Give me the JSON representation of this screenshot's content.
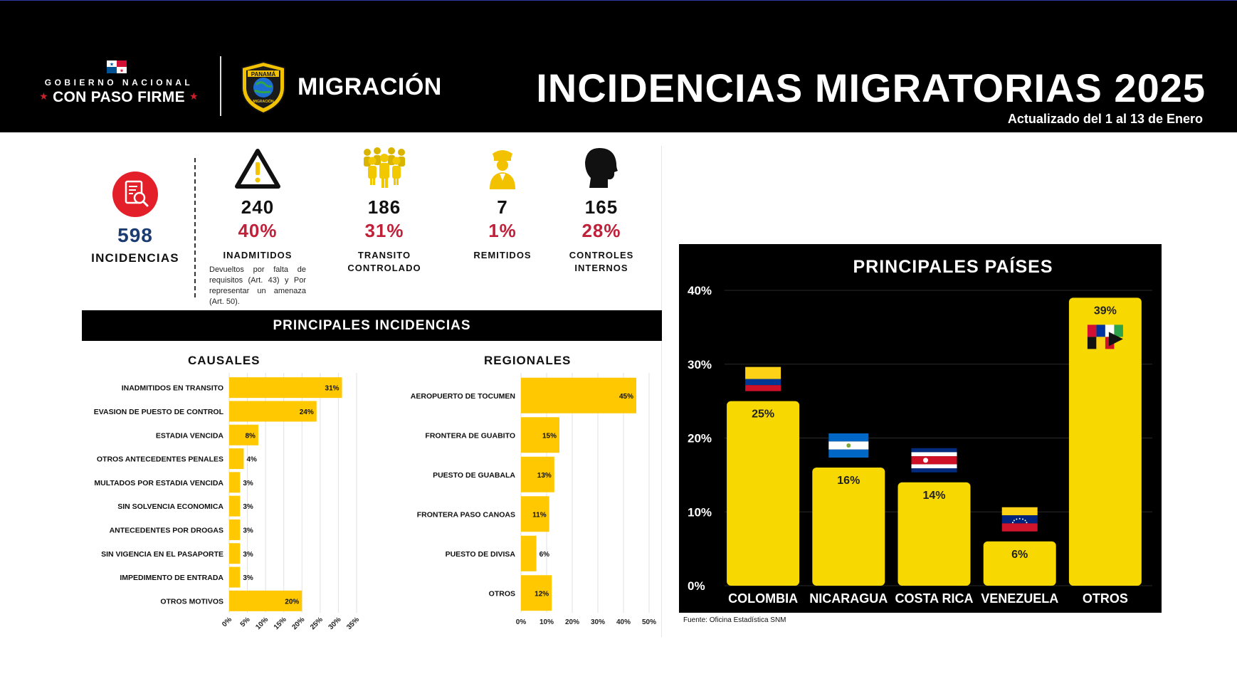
{
  "header": {
    "gob_line1": "GOBIERNO NACIONAL",
    "gob_line2": "CON PASO FIRME",
    "badge_text": "PANAMÁ",
    "badge_sub": "MIGRACIÓN",
    "agency": "MIGRACIÓN",
    "title": "INCIDENCIAS MIGRATORIAS 2025",
    "subtitle": "Actualizado del 1 al 13 de Enero"
  },
  "summary": {
    "total_value": "598",
    "total_label": "INCIDENCIAS",
    "icon": "search-document-icon"
  },
  "stats": [
    {
      "value": "240",
      "pct": "40%",
      "label": "INADMITIDOS",
      "icon": "warning-triangle-icon",
      "note": "Devueltos por falta de requisitos (Art. 43) y Por representar un amenaza (Art. 50)."
    },
    {
      "value": "186",
      "pct": "31%",
      "label": "TRANSITO CONTROLADO",
      "icon": "crowd-icon"
    },
    {
      "value": "7",
      "pct": "1%",
      "label": "REMITIDOS",
      "icon": "officer-icon"
    },
    {
      "value": "165",
      "pct": "28%",
      "label": "CONTROLES INTERNOS",
      "icon": "head-silhouette-icon"
    }
  ],
  "section_title": "PRINCIPALES INCIDENCIAS",
  "colors": {
    "bar": "#FFC800",
    "bar_country": "#F7D800",
    "accent_red": "#C0213A",
    "navy": "#1B3C73"
  },
  "chart_data": [
    {
      "type": "bar",
      "orientation": "horizontal",
      "title": "CAUSALES",
      "categories": [
        "INADMITIDOS EN TRANSITO",
        "EVASION DE PUESTO DE CONTROL",
        "ESTADIA VENCIDA",
        "OTROS ANTECEDENTES PENALES",
        "MULTADOS POR ESTADIA VENCIDA",
        "SIN SOLVENCIA ECONOMICA",
        "ANTECEDENTES POR DROGAS",
        "SIN VIGENCIA EN EL PASAPORTE",
        "IMPEDIMENTO DE ENTRADA",
        "OTROS MOTIVOS"
      ],
      "values": [
        31,
        24,
        8,
        4,
        3,
        3,
        3,
        3,
        3,
        20
      ],
      "labels": [
        "31%",
        "24%",
        "8%",
        "4%",
        "3%",
        "3%",
        "3%",
        "3%",
        "3%",
        "20%"
      ],
      "xlim": [
        0,
        35
      ],
      "ticks": [
        "0%",
        "5%",
        "10%",
        "15%",
        "20%",
        "25%",
        "30%",
        "35%"
      ],
      "grid": true
    },
    {
      "type": "bar",
      "orientation": "horizontal",
      "title": "REGIONALES",
      "categories": [
        "AEROPUERTO DE TOCUMEN",
        "FRONTERA DE GUABITO",
        "PUESTO DE GUABALA",
        "FRONTERA PASO CANOAS",
        "PUESTO DE DIVISA",
        "OTROS"
      ],
      "values": [
        45,
        15,
        13,
        11,
        6,
        12
      ],
      "labels": [
        "45%",
        "15%",
        "13%",
        "11%",
        "6%",
        "12%"
      ],
      "xlim": [
        0,
        50
      ],
      "ticks": [
        "0%",
        "10%",
        "20%",
        "30%",
        "40%",
        "50%"
      ],
      "grid": true
    },
    {
      "type": "bar",
      "orientation": "vertical",
      "title": "PRINCIPALES PAÍSES",
      "categories": [
        "COLOMBIA",
        "NICARAGUA",
        "COSTA RICA",
        "VENEZUELA",
        "OTROS"
      ],
      "values": [
        25,
        16,
        14,
        6,
        39
      ],
      "labels": [
        "25%",
        "16%",
        "14%",
        "6%",
        "39%"
      ],
      "flags": [
        "colombia-flag-icon",
        "nicaragua-flag-icon",
        "costa-rica-flag-icon",
        "venezuela-flag-icon",
        "mixed-flags-icon"
      ],
      "ylim": [
        0,
        40
      ],
      "ticks": [
        "0%",
        "10%",
        "20%",
        "30%",
        "40%"
      ],
      "grid": true,
      "background": "#000000"
    }
  ],
  "source": "Fuente: Oficina Estadística SNM"
}
